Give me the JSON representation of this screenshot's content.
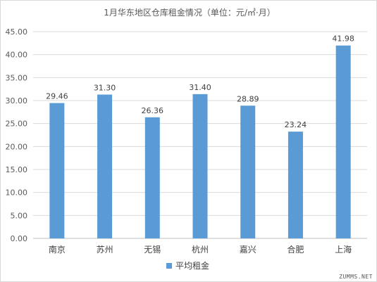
{
  "chart_data": {
    "type": "bar",
    "title": "1月华东地区仓库租金情况（单位：元/㎡·月）",
    "categories": [
      "南京",
      "苏州",
      "无锡",
      "杭州",
      "嘉兴",
      "合肥",
      "上海"
    ],
    "series": [
      {
        "name": "平均租金",
        "values": [
          29.46,
          31.3,
          26.36,
          31.4,
          28.89,
          23.24,
          41.98
        ]
      }
    ],
    "value_labels": [
      "29.46",
      "31.30",
      "26.36",
      "31.40",
      "28.89",
      "23.24",
      "41.98"
    ],
    "y_tick_labels": [
      "0.00",
      "5.00",
      "10.00",
      "15.00",
      "20.00",
      "25.00",
      "30.00",
      "35.00",
      "40.00",
      "45.00"
    ],
    "ylim": [
      0,
      45
    ],
    "grid": true,
    "legend_position": "bottom",
    "bar_color": "#5b9bd5"
  },
  "watermark": "ZUMMS.NET"
}
